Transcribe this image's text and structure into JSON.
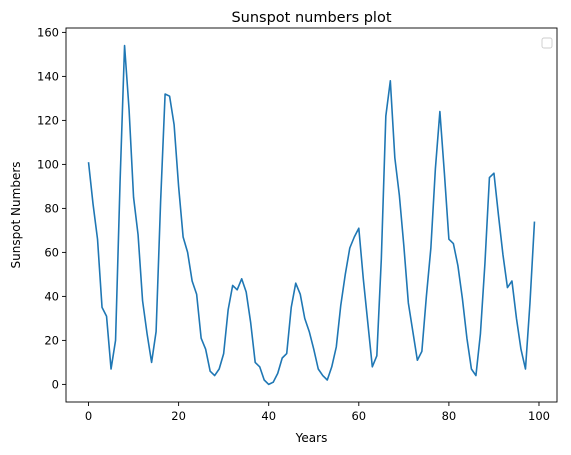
{
  "chart_data": {
    "type": "line",
    "title": "Sunspot numbers plot",
    "xlabel": "Years",
    "ylabel": "Sunspot Numbers",
    "xlim": [
      -5,
      104
    ],
    "ylim": [
      -8,
      162
    ],
    "xticks": [
      0,
      20,
      40,
      60,
      80,
      100
    ],
    "yticks": [
      0,
      20,
      40,
      60,
      80,
      100,
      120,
      140,
      160
    ],
    "grid": false,
    "legend": "top-right, empty",
    "line_color": "#1f77b4",
    "series": [
      {
        "values": [
          101,
          82,
          66,
          35,
          31,
          7,
          20,
          92,
          154,
          125,
          85,
          68,
          38,
          23,
          10,
          24,
          83,
          132,
          131,
          118,
          90,
          67,
          60,
          47,
          41,
          21,
          16,
          6,
          4,
          7,
          14,
          34,
          45,
          43,
          48,
          42,
          28,
          10,
          8,
          2,
          0,
          1,
          5,
          12,
          14,
          35,
          46,
          41,
          30,
          24,
          16,
          7,
          4,
          2,
          8,
          17,
          36,
          50,
          62,
          67,
          71,
          48,
          28,
          8,
          13,
          57,
          122,
          138,
          103,
          86,
          63,
          37,
          24,
          11,
          15,
          40,
          62,
          98,
          124,
          96,
          66,
          64,
          54,
          39,
          21,
          7,
          4,
          23,
          55,
          94,
          96,
          77,
          59,
          44,
          47,
          30,
          16,
          7,
          37,
          74
        ]
      }
    ]
  }
}
